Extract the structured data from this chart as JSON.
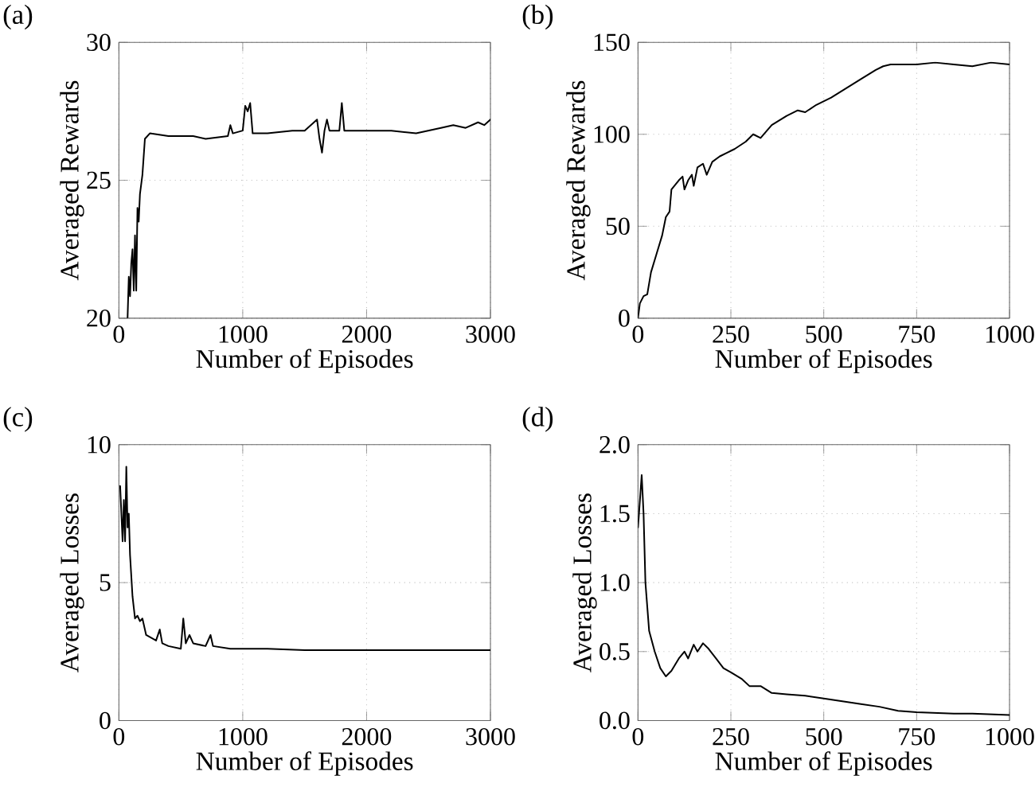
{
  "chart_data": [
    {
      "type": "line",
      "title": "(a)",
      "xlabel": "Number of Episodes",
      "ylabel": "Averaged Rewards",
      "xlim": [
        0,
        3000
      ],
      "ylim": [
        20,
        30
      ],
      "xticks": [
        0,
        1000,
        2000,
        3000
      ],
      "yticks": [
        20,
        25,
        30
      ],
      "grid": true,
      "series": [
        {
          "color": "#000000",
          "x": [
            70,
            80,
            90,
            100,
            110,
            120,
            130,
            140,
            150,
            160,
            170,
            190,
            210,
            250,
            400,
            600,
            700,
            880,
            900,
            920,
            1000,
            1020,
            1040,
            1060,
            1080,
            1200,
            1400,
            1500,
            1550,
            1600,
            1620,
            1640,
            1660,
            1680,
            1700,
            1780,
            1800,
            1820,
            2000,
            2200,
            2400,
            2600,
            2700,
            2800,
            2900,
            2950,
            3000
          ],
          "values": [
            20,
            21.5,
            20.8,
            22,
            22.5,
            21,
            23,
            21,
            24,
            23.5,
            24.5,
            25.2,
            26.5,
            26.7,
            26.6,
            26.6,
            26.5,
            26.6,
            27,
            26.7,
            26.8,
            27.7,
            27.5,
            27.8,
            26.7,
            26.7,
            26.8,
            26.8,
            27,
            27.2,
            26.5,
            26,
            26.8,
            27.2,
            26.8,
            26.8,
            27.8,
            26.8,
            26.8,
            26.8,
            26.7,
            26.9,
            27,
            26.9,
            27.1,
            27,
            27.2
          ]
        }
      ]
    },
    {
      "type": "line",
      "title": "(b)",
      "xlabel": "Number of Episodes",
      "ylabel": "Averaged Rewards",
      "xlim": [
        0,
        1000
      ],
      "ylim": [
        0,
        150
      ],
      "xticks": [
        0,
        250,
        500,
        750,
        1000
      ],
      "yticks": [
        0,
        50,
        100,
        150
      ],
      "grid": true,
      "series": [
        {
          "color": "#000000",
          "x": [
            0,
            5,
            15,
            25,
            35,
            50,
            65,
            75,
            85,
            90,
            110,
            120,
            125,
            135,
            145,
            150,
            160,
            175,
            185,
            200,
            220,
            240,
            260,
            290,
            310,
            330,
            360,
            400,
            430,
            450,
            480,
            520,
            560,
            600,
            640,
            660,
            680,
            750,
            800,
            850,
            900,
            950,
            1000
          ],
          "values": [
            0,
            8,
            12,
            13,
            25,
            35,
            45,
            55,
            58,
            70,
            75,
            77,
            70,
            75,
            78,
            72,
            82,
            84,
            78,
            85,
            88,
            90,
            92,
            96,
            100,
            98,
            105,
            110,
            113,
            112,
            116,
            120,
            125,
            130,
            135,
            137,
            138,
            138,
            139,
            138,
            137,
            139,
            138
          ]
        }
      ]
    },
    {
      "type": "line",
      "title": "(c)",
      "xlabel": "Number of Episodes",
      "ylabel": "Averaged Losses",
      "xlim": [
        0,
        3000
      ],
      "ylim": [
        0,
        10
      ],
      "xticks": [
        0,
        1000,
        2000,
        3000
      ],
      "yticks": [
        0,
        5,
        10
      ],
      "grid": true,
      "series": [
        {
          "color": "#000000",
          "x": [
            10,
            30,
            40,
            50,
            60,
            70,
            80,
            90,
            110,
            130,
            150,
            170,
            190,
            220,
            260,
            300,
            330,
            350,
            400,
            500,
            520,
            540,
            570,
            600,
            700,
            740,
            760,
            900,
            1200,
            1500,
            2000,
            2500,
            3000
          ],
          "values": [
            8.5,
            6.5,
            8,
            6.5,
            9.2,
            7,
            7.5,
            6,
            4.5,
            3.7,
            3.8,
            3.6,
            3.7,
            3.1,
            3,
            2.9,
            3.3,
            2.8,
            2.7,
            2.6,
            3.7,
            2.8,
            3.1,
            2.8,
            2.7,
            3.1,
            2.7,
            2.6,
            2.6,
            2.55,
            2.55,
            2.55,
            2.55
          ]
        }
      ]
    },
    {
      "type": "line",
      "title": "(d)",
      "xlabel": "Number of Episodes",
      "ylabel": "Averaged Losses",
      "xlim": [
        0,
        1000
      ],
      "ylim": [
        0,
        2
      ],
      "xticks": [
        0,
        250,
        500,
        750,
        1000
      ],
      "yticks": [
        {
          "value": 0,
          "label": "0.0"
        },
        {
          "value": 0.5,
          "label": "0.5"
        },
        {
          "value": 1,
          "label": "1.0"
        },
        {
          "value": 1.5,
          "label": "1.5"
        },
        {
          "value": 2,
          "label": "2.0"
        }
      ],
      "grid": true,
      "series": [
        {
          "color": "#000000",
          "x": [
            0,
            10,
            15,
            20,
            30,
            45,
            60,
            75,
            90,
            110,
            125,
            135,
            150,
            160,
            175,
            190,
            210,
            230,
            250,
            280,
            300,
            330,
            360,
            400,
            450,
            500,
            550,
            600,
            650,
            700,
            750,
            850,
            900,
            1000
          ],
          "values": [
            1.4,
            1.78,
            1.5,
            1,
            0.65,
            0.5,
            0.38,
            0.32,
            0.36,
            0.45,
            0.5,
            0.45,
            0.55,
            0.5,
            0.56,
            0.52,
            0.45,
            0.38,
            0.35,
            0.3,
            0.25,
            0.25,
            0.2,
            0.19,
            0.18,
            0.16,
            0.14,
            0.12,
            0.1,
            0.07,
            0.06,
            0.05,
            0.05,
            0.04
          ]
        }
      ]
    }
  ]
}
